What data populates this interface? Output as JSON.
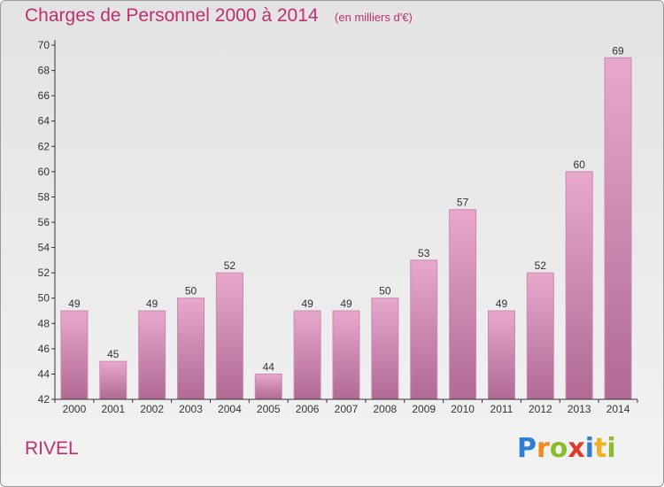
{
  "title": "Charges de Personnel 2000 à 2014",
  "unit_note": "(en milliers d'€)",
  "commune": "RIVEL",
  "logo_text": "Proxiti",
  "colors": {
    "title": "#c0306e",
    "bar_top": "#e8a8cc",
    "bar_bottom": "#b06a94",
    "axis": "#333333"
  },
  "chart_data": {
    "type": "bar",
    "title": "Charges de Personnel 2000 à 2014",
    "subtitle": "(en milliers d'€)",
    "xlabel": "",
    "ylabel": "",
    "categories": [
      "2000",
      "2001",
      "2002",
      "2003",
      "2004",
      "2005",
      "2006",
      "2007",
      "2008",
      "2009",
      "2010",
      "2011",
      "2012",
      "2013",
      "2014"
    ],
    "values": [
      49,
      45,
      49,
      50,
      52,
      44,
      49,
      49,
      50,
      53,
      57,
      49,
      52,
      60,
      69
    ],
    "ylim": [
      42,
      70
    ],
    "yticks": [
      42,
      44,
      46,
      48,
      50,
      52,
      54,
      56,
      58,
      60,
      62,
      64,
      66,
      68,
      70
    ],
    "grid": false,
    "legend": "none"
  }
}
